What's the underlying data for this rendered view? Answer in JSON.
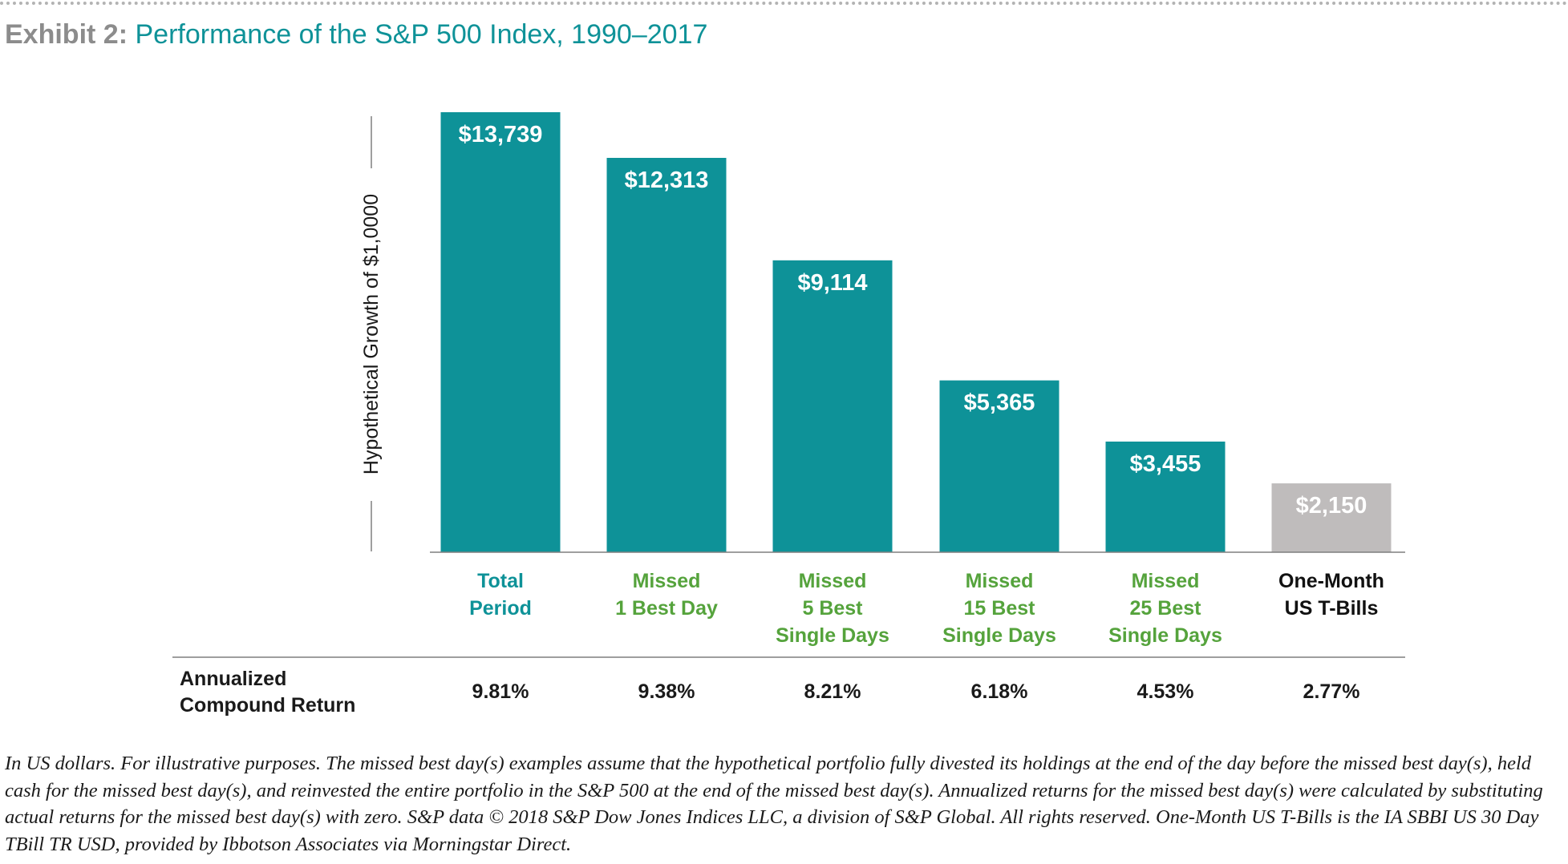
{
  "header": {
    "title_prefix": "Exhibit 2:",
    "title_main": "Performance of the S&P 500 Index, 1990–2017"
  },
  "colors": {
    "teal": "#0e9298",
    "green": "#55a33c",
    "gray_bar": "#bfbcbc",
    "axis": "#7f7f7f",
    "text": "#1a1a1a"
  },
  "chart_data": {
    "type": "bar",
    "title": "Performance of the S&P 500 Index, 1990–2017",
    "ylabel": "Hypothetical Growth of $1,0000",
    "xlabel": "",
    "ylim": [
      0,
      15000
    ],
    "categories": [
      [
        "Total",
        "Period"
      ],
      [
        "Missed",
        "1 Best Day"
      ],
      [
        "Missed",
        "5 Best",
        "Single Days"
      ],
      [
        "Missed",
        "15 Best",
        "Single Days"
      ],
      [
        "Missed",
        "25 Best",
        "Single Days"
      ],
      [
        "One-Month",
        "US T-Bills"
      ]
    ],
    "values": [
      13739,
      12313,
      9114,
      5365,
      3455,
      2150
    ],
    "value_labels": [
      "$13,739",
      "$12,313",
      "$9,114",
      "$5,365",
      "$3,455",
      "$2,150"
    ],
    "bar_colors": [
      "#0e9298",
      "#0e9298",
      "#0e9298",
      "#0e9298",
      "#0e9298",
      "#bfbcbc"
    ],
    "category_colors": [
      "#0e9298",
      "#55a33c",
      "#55a33c",
      "#55a33c",
      "#55a33c",
      "#111111"
    ],
    "returns_label": [
      "Annualized",
      "Compound Return"
    ],
    "returns": [
      "9.81%",
      "9.38%",
      "8.21%",
      "6.18%",
      "4.53%",
      "2.77%"
    ]
  },
  "footnote": "In US dollars. For illustrative purposes. The missed best day(s) examples assume that the hypothetical portfolio fully divested its holdings at the end of the day before the missed best day(s), held cash for the missed best day(s), and reinvested the entire portfolio in the S&P 500 at the end of the missed best day(s). Annualized returns for the missed best day(s) were calculated by substituting actual returns for the missed best day(s) with zero. S&P data © 2018 S&P Dow Jones Indices LLC, a division of S&P Global. All rights reserved. One-Month US T-Bills is the IA SBBI US 30 Day TBill TR USD, provided by Ibbotson Associates via Morningstar Direct."
}
